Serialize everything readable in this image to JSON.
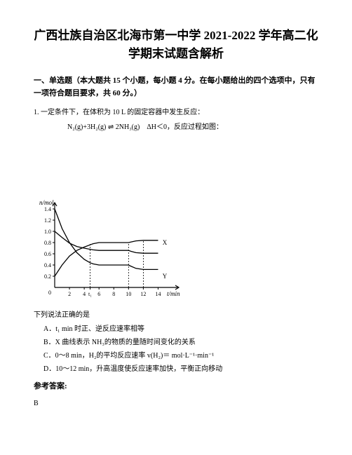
{
  "title_line1": "广西壮族自治区北海市第一中学 2021-2022 学年高二化",
  "title_line2": "学期末试题含解析",
  "section_heading": "一、单选题（本大题共 15 个小题，每小题 4 分。在每小题给出的四个选项中，只有一项符合题目要求，共 60 分。）",
  "q1_stem": "1. 一定条件下，在体积为 10 L 的固定容器中发生反应：",
  "q1_equation": "N₂(g)+3H₂(g) ⇌ 2NH₃(g)　ΔH＜0，反应过程如图：",
  "chart": {
    "type": "line",
    "y_label": "n/mol",
    "x_label": "t/min",
    "x_ticks": [
      2,
      4,
      "t₁",
      6,
      8,
      10,
      12,
      14
    ],
    "y_ticks": [
      0.2,
      0.4,
      0.6,
      0.8,
      1.0,
      1.2,
      1.4
    ],
    "xlim": [
      0,
      15
    ],
    "ylim": [
      0,
      1.45
    ],
    "series": [
      {
        "name": "X",
        "label": "X",
        "label_pos": [
          14.6,
          0.8
        ],
        "color": "#000000",
        "dash": "none",
        "width": 1.3,
        "points": [
          [
            0,
            0.2
          ],
          [
            1,
            0.4
          ],
          [
            2,
            0.56
          ],
          [
            3,
            0.66
          ],
          [
            4,
            0.72
          ],
          [
            4.8,
            0.76
          ],
          [
            5.2,
            0.78
          ],
          [
            6,
            0.8
          ],
          [
            7,
            0.8
          ],
          [
            8,
            0.8
          ],
          [
            10,
            0.8
          ],
          [
            10.3,
            0.81
          ],
          [
            11,
            0.83
          ],
          [
            12,
            0.84
          ],
          [
            13,
            0.84
          ],
          [
            14,
            0.84
          ]
        ]
      },
      {
        "name": "Y",
        "label": "Y",
        "label_pos": [
          14.6,
          0.2
        ],
        "color": "#000000",
        "dash": "none",
        "width": 1.3,
        "points": [
          [
            0,
            1.4
          ],
          [
            1,
            1.05
          ],
          [
            2,
            0.8
          ],
          [
            3,
            0.62
          ],
          [
            4,
            0.5
          ],
          [
            4.8,
            0.44
          ],
          [
            5.2,
            0.42
          ],
          [
            6,
            0.4
          ],
          [
            7,
            0.4
          ],
          [
            8,
            0.4
          ],
          [
            10,
            0.4
          ],
          [
            10.3,
            0.38
          ],
          [
            11,
            0.34
          ],
          [
            12,
            0.32
          ],
          [
            13,
            0.32
          ],
          [
            14,
            0.32
          ]
        ]
      },
      {
        "name": "Z",
        "label": "",
        "color": "#000000",
        "dash": "none",
        "width": 1.3,
        "points": [
          [
            0,
            1.0
          ],
          [
            1,
            0.89
          ],
          [
            2,
            0.79
          ],
          [
            3,
            0.73
          ],
          [
            4,
            0.7
          ],
          [
            4.8,
            0.68
          ],
          [
            5.2,
            0.67
          ],
          [
            6,
            0.66
          ],
          [
            7,
            0.66
          ],
          [
            8,
            0.66
          ],
          [
            10,
            0.66
          ],
          [
            10.3,
            0.645
          ],
          [
            11,
            0.62
          ],
          [
            12,
            0.61
          ],
          [
            13,
            0.61
          ],
          [
            14,
            0.61
          ]
        ]
      }
    ],
    "dotted_guides": [
      {
        "points": [
          [
            4.8,
            0
          ],
          [
            4.8,
            0.78
          ]
        ]
      },
      {
        "points": [
          [
            10,
            0
          ],
          [
            10,
            0.8
          ]
        ]
      },
      {
        "points": [
          [
            12,
            0
          ],
          [
            12,
            0.84
          ]
        ]
      }
    ],
    "axis_color": "#000000",
    "grid": false,
    "background": "#ffffff",
    "tick_fontsize": 8,
    "label_fontsize": 9
  },
  "stmt": "下列说法正确的是",
  "opts": {
    "A": "A．t₁ min 时正、逆反应速率相等",
    "B": "B．X 曲线表示 NH₃的物质的量随时间变化的关系",
    "C": "C．0～8 min，H₂的平均反应速率 v(H₂)＝ mol·L⁻¹·min⁻¹",
    "D": "D．10～12 min，升高温度使反应速率加快，平衡正向移动"
  },
  "answer_label": "参考答案:",
  "answer": "B"
}
